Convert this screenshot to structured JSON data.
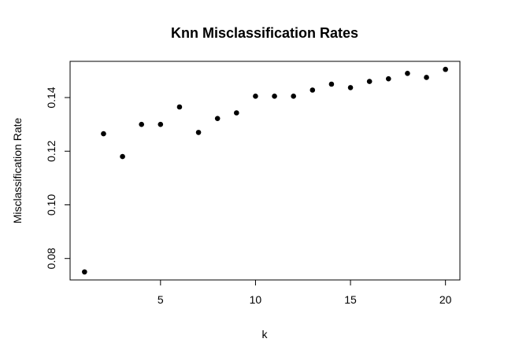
{
  "chart_data": {
    "type": "scatter",
    "title": "Knn Misclassification Rates",
    "xlabel": "k",
    "ylabel": "Misclassification Rate",
    "x": [
      1,
      2,
      3,
      4,
      5,
      6,
      7,
      8,
      9,
      10,
      11,
      12,
      13,
      14,
      15,
      16,
      17,
      18,
      19,
      20
    ],
    "y": [
      0.075,
      0.1265,
      0.118,
      0.13,
      0.13,
      0.1365,
      0.127,
      0.1322,
      0.1343,
      0.1405,
      0.1405,
      0.1405,
      0.1428,
      0.145,
      0.1437,
      0.146,
      0.147,
      0.149,
      0.1475,
      0.1505
    ],
    "xlim": [
      0.24,
      20.76
    ],
    "ylim": [
      0.072,
      0.1535
    ],
    "x_ticks": [
      5,
      10,
      15,
      20
    ],
    "x_tick_labels": [
      "5",
      "10",
      "15",
      "20"
    ],
    "y_ticks": [
      0.08,
      0.1,
      0.12,
      0.14
    ],
    "y_tick_labels": [
      "0.08",
      "0.10",
      "0.12",
      "0.14"
    ],
    "grid": false,
    "legend": "none",
    "point_color": "#000000"
  }
}
